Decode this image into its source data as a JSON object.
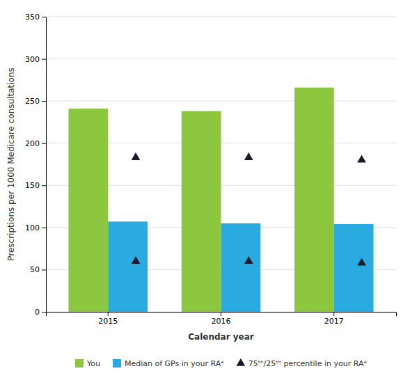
{
  "chart_data": {
    "type": "bar",
    "categories": [
      "2015",
      "2016",
      "2017"
    ],
    "series": [
      {
        "name": "You",
        "color": "#8DC63F",
        "values": [
          241,
          238,
          266
        ]
      },
      {
        "name": "Median of GPs in your RAᵉ",
        "color": "#29ABE2",
        "values": [
          107,
          105,
          104
        ]
      },
      {
        "name": "75ᵗʰ/25ᵗʰ percentile in your RAᵉ",
        "type": "scatter",
        "marker": "triangle-up",
        "color": "#1a1a2e",
        "values": [
          183,
          183,
          180
        ],
        "lower_values": [
          60,
          60,
          58
        ]
      }
    ],
    "xlabel": "Calendar year",
    "ylabel": "Prescriptions per 1000 Medicare consultations",
    "ylim": [
      0,
      350
    ],
    "yticks": [
      0,
      50,
      100,
      150,
      200,
      250,
      300,
      350
    ],
    "grid": true,
    "legend": "bottom"
  }
}
